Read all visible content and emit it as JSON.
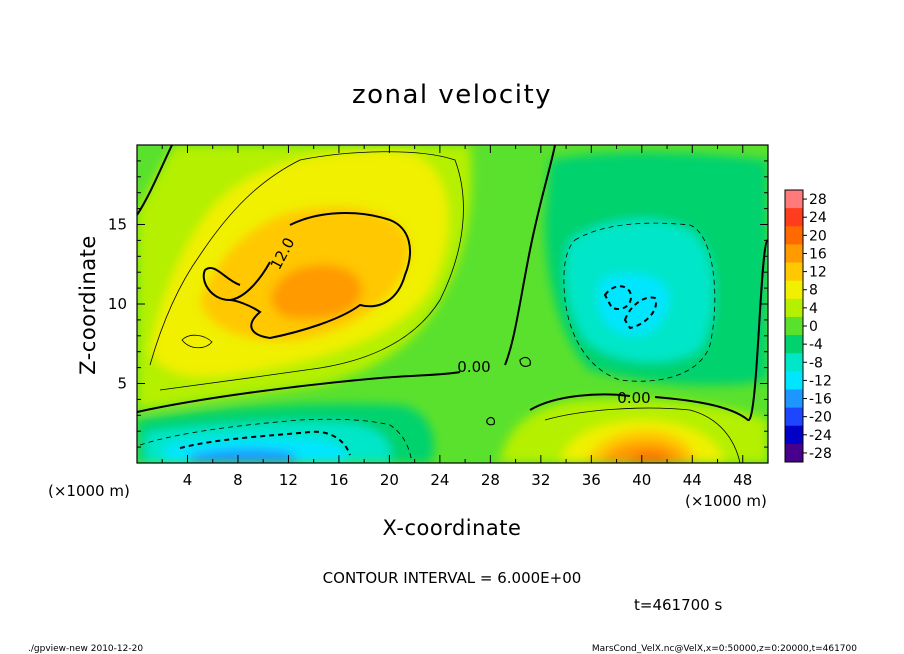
{
  "chart_data": {
    "type": "heatmap",
    "title": "zonal velocity",
    "xlabel": "X-coordinate",
    "ylabel": "Z-coordinate",
    "x_unit": "(×1000 m)",
    "y_unit": "(×1000 m)",
    "xlim": [
      0,
      50
    ],
    "ylim": [
      0,
      20
    ],
    "x_ticks": [
      4,
      8,
      12,
      16,
      20,
      24,
      28,
      32,
      36,
      40,
      44,
      48
    ],
    "y_ticks": [
      5,
      10,
      15
    ],
    "colorbar_levels": [
      28,
      24,
      20,
      16,
      12,
      8,
      4,
      0,
      -4,
      -8,
      -12,
      -16,
      -20,
      -24,
      -28
    ],
    "colorbar_colors": [
      "#ff7b7b",
      "#ff3c1e",
      "#ff6a00",
      "#ff9a00",
      "#ffc800",
      "#f0f000",
      "#b4f000",
      "#5ae12d",
      "#00d26e",
      "#00e6c8",
      "#00e6ff",
      "#1e96ff",
      "#1e46ff",
      "#0000c8",
      "#46008c"
    ],
    "contour_interval": "CONTOUR INTERVAL = 6.000E+00",
    "contour_labels": [
      "12.0",
      "0.00",
      "0.00"
    ],
    "field_features": [
      {
        "name": "jet maximum aloft",
        "x": 14,
        "z": 11,
        "value": 14
      },
      {
        "name": "low-level easterly minimum",
        "x": 12,
        "z": 1.5,
        "value": -14
      },
      {
        "name": "low-level westerly maximum",
        "x": 40,
        "z": 1,
        "value": 18
      },
      {
        "name": "upper-right easterly core",
        "x": 39,
        "z": 10,
        "value": -11
      }
    ],
    "time_label": "t=461700 s"
  },
  "footer": {
    "left": "./gpview-new 2010-12-20",
    "right": "MarsCond_VelX.nc@VelX,x=0:50000,z=0:20000,t=461700"
  }
}
